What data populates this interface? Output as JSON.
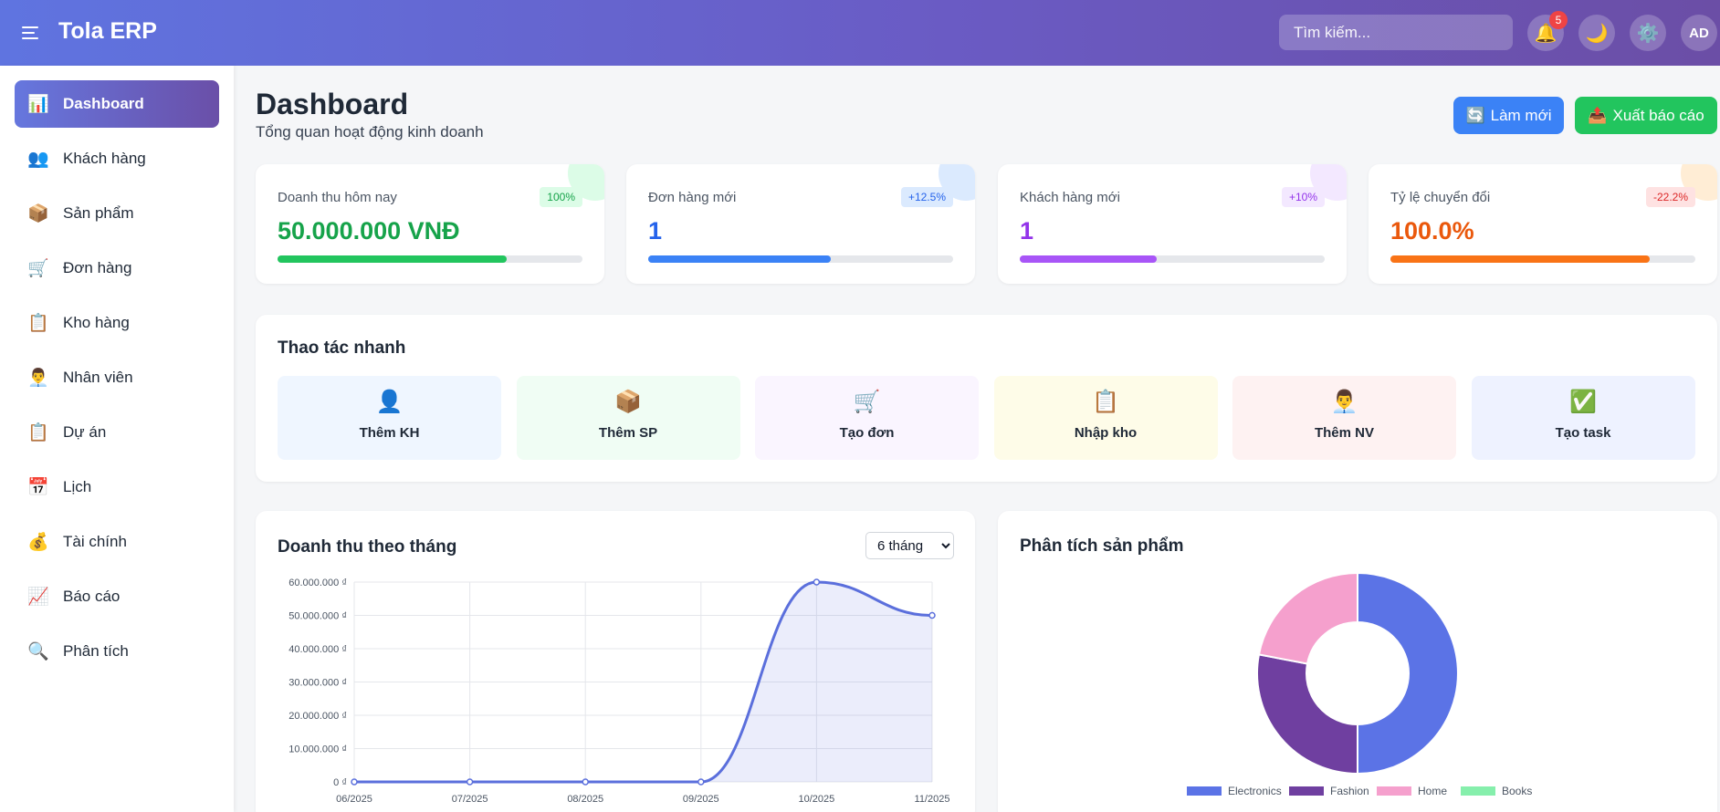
{
  "header": {
    "app_name": "Tola ERP",
    "search_placeholder": "Tìm kiếm...",
    "notification_count": "5",
    "avatar_initials": "AD"
  },
  "sidebar": {
    "items": [
      {
        "icon": "📊",
        "label": "Dashboard",
        "active": true
      },
      {
        "icon": "👥",
        "label": "Khách hàng"
      },
      {
        "icon": "📦",
        "label": "Sản phẩm"
      },
      {
        "icon": "🛒",
        "label": "Đơn hàng"
      },
      {
        "icon": "📋",
        "label": "Kho hàng"
      },
      {
        "icon": "👨‍💼",
        "label": "Nhân viên"
      },
      {
        "icon": "📋",
        "label": "Dự án"
      },
      {
        "icon": "📅",
        "label": "Lịch"
      },
      {
        "icon": "💰",
        "label": "Tài chính"
      },
      {
        "icon": "📈",
        "label": "Báo cáo"
      },
      {
        "icon": "🔍",
        "label": "Phân tích"
      }
    ]
  },
  "page": {
    "title": "Dashboard",
    "subtitle": "Tổng quan hoạt động kinh doanh",
    "refresh_icon": "🔄",
    "refresh_label": "Làm mới",
    "export_icon": "📤",
    "export_label": "Xuất báo cáo"
  },
  "stats": [
    {
      "label": "Doanh thu hôm nay",
      "value": "50.000.000 VNĐ",
      "change": "100%",
      "progress": 0.75,
      "color": "#16a34a",
      "bar": "#22c55e",
      "chip_bg": "#dcfce7",
      "chip_fg": "#16a34a",
      "corner": "#dcfce7"
    },
    {
      "label": "Đơn hàng mới",
      "value": "1",
      "change": "+12.5%",
      "progress": 0.6,
      "color": "#2563eb",
      "bar": "#3b82f6",
      "chip_bg": "#dbeafe",
      "chip_fg": "#2563eb",
      "corner": "#dbeafe"
    },
    {
      "label": "Khách hàng mới",
      "value": "1",
      "change": "+10%",
      "progress": 0.45,
      "color": "#9333ea",
      "bar": "#a855f7",
      "chip_bg": "#f3e8ff",
      "chip_fg": "#9333ea",
      "corner": "#f3e8ff"
    },
    {
      "label": "Tỷ lệ chuyển đổi",
      "value": "100.0%",
      "change": "-22.2%",
      "progress": 0.85,
      "color": "#ea580c",
      "bar": "#f97316",
      "chip_bg": "#fee2e2",
      "chip_fg": "#dc2626",
      "corner": "#ffedd5"
    }
  ],
  "quick_actions": {
    "title": "Thao tác nhanh",
    "items": [
      {
        "icon": "👤",
        "label": "Thêm KH",
        "bg": "#eff6ff"
      },
      {
        "icon": "📦",
        "label": "Thêm SP",
        "bg": "#f0fdf4"
      },
      {
        "icon": "🛒",
        "label": "Tạo đơn",
        "bg": "#faf5ff"
      },
      {
        "icon": "📋",
        "label": "Nhập kho",
        "bg": "#fefce8"
      },
      {
        "icon": "👨‍💼",
        "label": "Thêm NV",
        "bg": "#fef2f2"
      },
      {
        "icon": "✅",
        "label": "Tạo task",
        "bg": "#eef2ff"
      }
    ]
  },
  "revenue_chart": {
    "title": "Doanh thu theo tháng",
    "period_selected": "6 tháng"
  },
  "product_chart": {
    "title": "Phân tích sản phẩm"
  },
  "chart_data": [
    {
      "type": "area",
      "title": "Doanh thu theo tháng",
      "categories": [
        "06/2025",
        "07/2025",
        "08/2025",
        "09/2025",
        "10/2025",
        "11/2025"
      ],
      "values": [
        0,
        0,
        0,
        0,
        60000000,
        50000000
      ],
      "y_ticks": [
        "0 ₫",
        "10.000.000 ₫",
        "20.000.000 ₫",
        "30.000.000 ₫",
        "40.000.000 ₫",
        "50.000.000 ₫",
        "60.000.000 ₫"
      ],
      "ylim": [
        0,
        60000000
      ],
      "grid": true,
      "line_color": "#5b6fdc"
    },
    {
      "type": "pie",
      "title": "Phân tích sản phẩm",
      "labels": [
        "Electronics",
        "Fashion",
        "Home",
        "Books"
      ],
      "values": [
        50,
        28,
        22,
        0
      ],
      "colors": [
        "#5b73e6",
        "#6f3fa0",
        "#f5a0cd",
        "#86efac"
      ],
      "legend": "bottom"
    }
  ]
}
